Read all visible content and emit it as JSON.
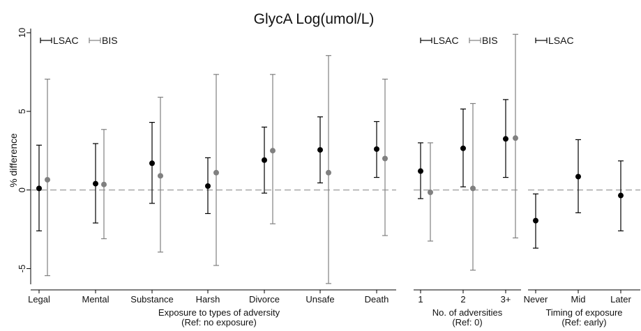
{
  "chart_data": {
    "type": "scatter",
    "title": "GlycA Log(umol/L)",
    "ylabel": "% difference",
    "ylim": [
      -6,
      10
    ],
    "yticks": [
      -5,
      0,
      5,
      10
    ],
    "reference_line": 0,
    "colors": {
      "LSAC": "#000000",
      "BIS": "#808080",
      "reference": "#999999"
    },
    "panels": [
      {
        "xlabel": "Exposure to types of adversity",
        "xlabel_sub": "(Ref: no exposure)",
        "categories": [
          "Legal",
          "Mental",
          "Substance",
          "Harsh",
          "Divorce",
          "Unsafe",
          "Death"
        ],
        "legend": [
          "LSAC",
          "BIS"
        ],
        "series": [
          {
            "name": "LSAC",
            "estimate": [
              0.1,
              0.4,
              1.7,
              0.25,
              1.9,
              2.55,
              2.6
            ],
            "lower": [
              -2.6,
              -2.1,
              -0.85,
              -1.5,
              -0.2,
              0.45,
              0.8
            ],
            "upper": [
              2.85,
              2.95,
              4.3,
              2.05,
              4.0,
              4.65,
              4.35
            ]
          },
          {
            "name": "BIS",
            "estimate": [
              0.65,
              0.35,
              0.9,
              1.1,
              2.5,
              1.1,
              2.0
            ],
            "lower": [
              -5.45,
              -3.1,
              -3.95,
              -4.8,
              -2.15,
              -5.95,
              -2.9
            ],
            "upper": [
              7.05,
              3.85,
              5.9,
              7.35,
              7.35,
              8.55,
              7.05
            ]
          }
        ]
      },
      {
        "xlabel": "No. of adversities",
        "xlabel_sub": "(Ref: 0)",
        "categories": [
          "1",
          "2",
          "3+"
        ],
        "legend": [
          "LSAC",
          "BIS"
        ],
        "series": [
          {
            "name": "LSAC",
            "estimate": [
              1.2,
              2.65,
              3.25
            ],
            "lower": [
              -0.55,
              0.2,
              0.8
            ],
            "upper": [
              3.0,
              5.15,
              5.75
            ]
          },
          {
            "name": "BIS",
            "estimate": [
              -0.15,
              0.1,
              3.3
            ],
            "lower": [
              -3.25,
              -5.1,
              -3.05
            ],
            "upper": [
              3.0,
              5.5,
              9.9
            ]
          }
        ]
      },
      {
        "xlabel": "Timing of exposure",
        "xlabel_sub": "(Ref: early)",
        "categories": [
          "Never",
          "Mid",
          "Later"
        ],
        "legend": [
          "LSAC"
        ],
        "series": [
          {
            "name": "LSAC",
            "estimate": [
              -1.95,
              0.85,
              -0.35
            ],
            "lower": [
              -3.7,
              -1.45,
              -2.6
            ],
            "upper": [
              -0.25,
              3.2,
              1.85
            ]
          }
        ]
      }
    ]
  }
}
